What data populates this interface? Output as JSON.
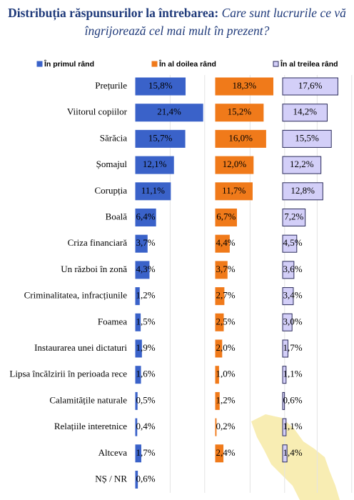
{
  "chart_data": {
    "type": "bar",
    "orientation": "horizontal",
    "title": "Distribuția răspunsurilor la întrebarea:",
    "subtitle": "Care sunt lucrurile ce vă îngrijorează cel mai mult în prezent?",
    "categories": [
      "Prețurile",
      "Viitorul copiilor",
      "Sărăcia",
      "Șomajul",
      "Corupția",
      "Boală",
      "Criza financiară",
      "Un război în zonă",
      "Criminalitatea, infracțiunile",
      "Foamea",
      "Instaurarea unei dictaturi",
      "Lipsa încălzirii în perioada rece",
      "Calamitățile naturale",
      "Relațiile interetnice",
      "Altceva",
      "NȘ / NR"
    ],
    "series": [
      {
        "name": "În primul rând",
        "color": "#3a62c9",
        "border": "#3a62c9",
        "values": [
          15.8,
          21.4,
          15.7,
          12.1,
          11.1,
          6.4,
          3.7,
          4.3,
          1.2,
          1.5,
          1.9,
          1.6,
          0.5,
          0.4,
          1.7,
          0.6
        ],
        "value_labels": [
          "15,8%",
          "21,4%",
          "15,7%",
          "12,1%",
          "11,1%",
          "6,4%",
          "3,7%",
          "4,3%",
          "1,2%",
          "1,5%",
          "1,9%",
          "1,6%",
          "0,5%",
          "0,4%",
          "1,7%",
          "0,6%"
        ]
      },
      {
        "name": "În al doilea rând",
        "color": "#f07a1a",
        "border": "#f07a1a",
        "values": [
          18.3,
          15.2,
          16.0,
          12.0,
          11.7,
          6.7,
          4.4,
          3.7,
          2.7,
          2.5,
          2.0,
          1.0,
          1.2,
          0.2,
          2.4,
          null
        ],
        "value_labels": [
          "18,3%",
          "15,2%",
          "16,0%",
          "12,0%",
          "11,7%",
          "6,7%",
          "4,4%",
          "3,7%",
          "2,7%",
          "2,5%",
          "2,0%",
          "1,0%",
          "1,2%",
          "0,2%",
          "2,4%",
          null
        ]
      },
      {
        "name": "În al treilea rând",
        "color": "#d3cff8",
        "border": "#2a2a5a",
        "values": [
          17.6,
          14.2,
          15.5,
          12.2,
          12.8,
          7.2,
          4.5,
          3.6,
          3.4,
          3.0,
          1.7,
          1.1,
          0.6,
          1.1,
          1.4,
          null
        ],
        "value_labels": [
          "17,6%",
          "14,2%",
          "15,5%",
          "12,2%",
          "12,8%",
          "7,2%",
          "4,5%",
          "3,6%",
          "3,4%",
          "3,0%",
          "1,7%",
          "1,1%",
          "0,6%",
          "1,1%",
          "1,4%",
          null
        ]
      }
    ]
  }
}
